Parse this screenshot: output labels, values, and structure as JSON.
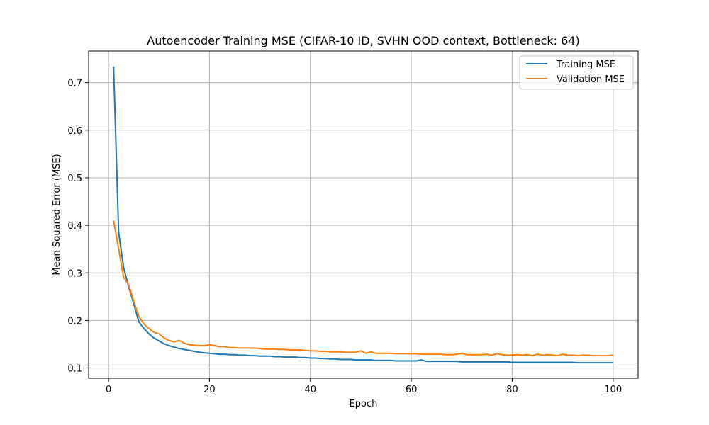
{
  "chart_data": {
    "type": "line",
    "title": "Autoencoder Training MSE (CIFAR-10 ID, SVHN OOD context, Bottleneck: 64)",
    "xlabel": "Epoch",
    "ylabel": "Mean Squared Error (MSE)",
    "xlim": [
      -3.95,
      104.95
    ],
    "ylim": [
      0.0785,
      0.7665
    ],
    "xticks": [
      0,
      20,
      40,
      60,
      80,
      100
    ],
    "yticks": [
      0.1,
      0.2,
      0.3,
      0.4,
      0.5,
      0.6,
      0.7
    ],
    "xtick_labels": [
      "0",
      "20",
      "40",
      "60",
      "80",
      "100"
    ],
    "ytick_labels": [
      "0.1",
      "0.2",
      "0.3",
      "0.4",
      "0.5",
      "0.6",
      "0.7"
    ],
    "grid": true,
    "legend_position": "top-right",
    "x": [
      1,
      2,
      3,
      4,
      5,
      6,
      7,
      8,
      9,
      10,
      11,
      12,
      13,
      14,
      15,
      16,
      17,
      18,
      19,
      20,
      21,
      22,
      23,
      24,
      25,
      26,
      27,
      28,
      29,
      30,
      31,
      32,
      33,
      34,
      35,
      36,
      37,
      38,
      39,
      40,
      41,
      42,
      43,
      44,
      45,
      46,
      47,
      48,
      49,
      50,
      51,
      52,
      53,
      54,
      55,
      56,
      57,
      58,
      59,
      60,
      61,
      62,
      63,
      64,
      65,
      66,
      67,
      68,
      69,
      70,
      71,
      72,
      73,
      74,
      75,
      76,
      77,
      78,
      79,
      80,
      81,
      82,
      83,
      84,
      85,
      86,
      87,
      88,
      89,
      90,
      91,
      92,
      93,
      94,
      95,
      96,
      97,
      98,
      99,
      100
    ],
    "series": [
      {
        "name": "Training MSE",
        "color": "#1f77b4",
        "values": [
          0.734,
          0.385,
          0.31,
          0.27,
          0.235,
          0.197,
          0.183,
          0.172,
          0.163,
          0.157,
          0.151,
          0.147,
          0.144,
          0.141,
          0.139,
          0.137,
          0.135,
          0.133,
          0.132,
          0.131,
          0.13,
          0.129,
          0.129,
          0.128,
          0.128,
          0.127,
          0.127,
          0.126,
          0.126,
          0.125,
          0.125,
          0.125,
          0.124,
          0.124,
          0.123,
          0.123,
          0.123,
          0.122,
          0.122,
          0.121,
          0.121,
          0.12,
          0.12,
          0.119,
          0.119,
          0.118,
          0.118,
          0.118,
          0.117,
          0.117,
          0.117,
          0.117,
          0.116,
          0.116,
          0.116,
          0.116,
          0.115,
          0.115,
          0.115,
          0.115,
          0.115,
          0.117,
          0.114,
          0.114,
          0.114,
          0.114,
          0.114,
          0.114,
          0.114,
          0.113,
          0.113,
          0.113,
          0.113,
          0.113,
          0.113,
          0.113,
          0.113,
          0.113,
          0.113,
          0.112,
          0.112,
          0.112,
          0.112,
          0.112,
          0.112,
          0.112,
          0.112,
          0.112,
          0.112,
          0.112,
          0.112,
          0.112,
          0.111,
          0.111,
          0.111,
          0.111,
          0.111,
          0.111,
          0.111,
          0.111
        ]
      },
      {
        "name": "Validation MSE",
        "color": "#ff7f0e",
        "values": [
          0.41,
          0.35,
          0.29,
          0.275,
          0.24,
          0.208,
          0.193,
          0.183,
          0.175,
          0.172,
          0.163,
          0.158,
          0.155,
          0.158,
          0.152,
          0.149,
          0.148,
          0.147,
          0.147,
          0.149,
          0.147,
          0.145,
          0.145,
          0.143,
          0.143,
          0.142,
          0.142,
          0.142,
          0.142,
          0.141,
          0.14,
          0.14,
          0.14,
          0.139,
          0.139,
          0.138,
          0.138,
          0.138,
          0.137,
          0.136,
          0.136,
          0.135,
          0.135,
          0.134,
          0.134,
          0.134,
          0.133,
          0.133,
          0.133,
          0.136,
          0.131,
          0.134,
          0.131,
          0.131,
          0.131,
          0.131,
          0.13,
          0.13,
          0.13,
          0.13,
          0.13,
          0.129,
          0.129,
          0.129,
          0.129,
          0.129,
          0.128,
          0.128,
          0.129,
          0.131,
          0.128,
          0.128,
          0.128,
          0.128,
          0.129,
          0.127,
          0.13,
          0.128,
          0.127,
          0.127,
          0.128,
          0.127,
          0.128,
          0.126,
          0.129,
          0.127,
          0.128,
          0.127,
          0.126,
          0.129,
          0.127,
          0.127,
          0.126,
          0.127,
          0.127,
          0.126,
          0.126,
          0.126,
          0.126,
          0.127
        ]
      }
    ]
  }
}
